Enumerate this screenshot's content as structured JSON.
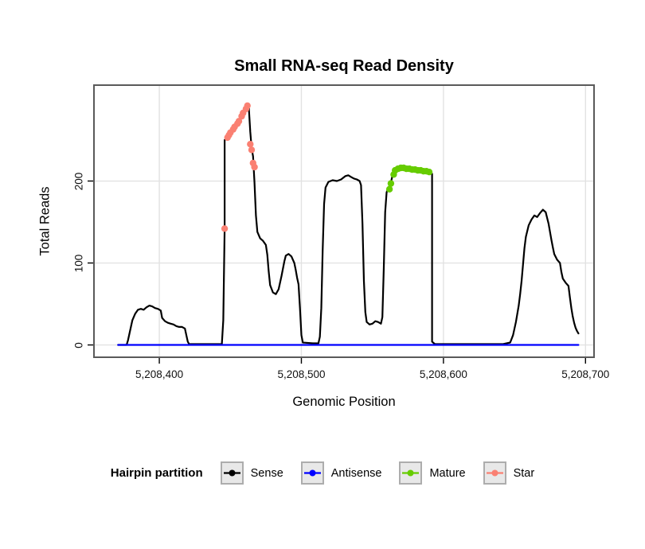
{
  "title": "Small RNA-seq Read Density",
  "x_axis": {
    "label": "Genomic Position",
    "ticks": [
      5208400,
      5208500,
      5208600,
      5208700
    ],
    "tick_labels": [
      "5,208,400",
      "5,208,500",
      "5,208,600",
      "5,208,700"
    ]
  },
  "y_axis": {
    "label": "Total Reads",
    "ticks": [
      0,
      100,
      200
    ],
    "tick_labels": [
      "0",
      "100",
      "200"
    ]
  },
  "legend": {
    "title": "Hairpin partition",
    "items": [
      {
        "label": "Sense",
        "color": "#000000"
      },
      {
        "label": "Antisense",
        "color": "#0000FF"
      },
      {
        "label": "Mature",
        "color": "#66CC00"
      },
      {
        "label": "Star",
        "color": "#FA8072"
      }
    ]
  },
  "colors": {
    "grid": "#E2E2E2",
    "panel_border": "#5A5A5A",
    "tick": "#000000"
  },
  "chart_data": {
    "type": "line",
    "title": "Small RNA-seq Read Density",
    "xlabel": "Genomic Position",
    "ylabel": "Total Reads",
    "xlim": [
      5208354,
      5208706
    ],
    "ylim": [
      -15,
      317
    ],
    "grid": true,
    "legend_position": "bottom",
    "series": [
      {
        "name": "Sense",
        "type": "line",
        "color": "#000000",
        "points": [
          [
            5208371,
            0
          ],
          [
            5208377,
            0
          ],
          [
            5208378,
            6
          ],
          [
            5208379,
            14
          ],
          [
            5208380,
            22
          ],
          [
            5208381,
            30
          ],
          [
            5208383,
            38
          ],
          [
            5208385,
            43
          ],
          [
            5208387,
            44
          ],
          [
            5208389,
            43
          ],
          [
            5208391,
            46
          ],
          [
            5208393,
            48
          ],
          [
            5208395,
            47
          ],
          [
            5208397,
            45
          ],
          [
            5208399,
            44
          ],
          [
            5208401,
            42
          ],
          [
            5208402,
            33
          ],
          [
            5208404,
            29
          ],
          [
            5208406,
            27
          ],
          [
            5208408,
            26
          ],
          [
            5208410,
            25
          ],
          [
            5208412,
            23
          ],
          [
            5208414,
            22
          ],
          [
            5208416,
            22
          ],
          [
            5208418,
            20
          ],
          [
            5208419,
            12
          ],
          [
            5208420,
            4
          ],
          [
            5208421,
            1
          ],
          [
            5208432,
            1
          ],
          [
            5208444,
            1
          ],
          [
            5208445,
            30
          ],
          [
            5208446,
            142
          ],
          [
            5208446,
            250
          ],
          [
            5208448,
            253
          ],
          [
            5208450,
            258
          ],
          [
            5208452,
            263
          ],
          [
            5208454,
            268
          ],
          [
            5208456,
            273
          ],
          [
            5208458,
            279
          ],
          [
            5208460,
            286
          ],
          [
            5208462,
            292
          ],
          [
            5208463,
            289
          ],
          [
            5208464,
            260
          ],
          [
            5208465,
            240
          ],
          [
            5208466,
            230
          ],
          [
            5208467,
            198
          ],
          [
            5208468,
            158
          ],
          [
            5208469,
            138
          ],
          [
            5208471,
            130
          ],
          [
            5208473,
            127
          ],
          [
            5208475,
            122
          ],
          [
            5208476,
            110
          ],
          [
            5208477,
            90
          ],
          [
            5208478,
            73
          ],
          [
            5208480,
            64
          ],
          [
            5208482,
            62
          ],
          [
            5208484,
            68
          ],
          [
            5208486,
            84
          ],
          [
            5208488,
            102
          ],
          [
            5208489,
            109
          ],
          [
            5208491,
            111
          ],
          [
            5208493,
            108
          ],
          [
            5208495,
            100
          ],
          [
            5208496,
            92
          ],
          [
            5208497,
            82
          ],
          [
            5208498,
            74
          ],
          [
            5208499,
            45
          ],
          [
            5208500,
            12
          ],
          [
            5208501,
            3
          ],
          [
            5208508,
            2
          ],
          [
            5208512,
            2
          ],
          [
            5208513,
            10
          ],
          [
            5208514,
            45
          ],
          [
            5208515,
            115
          ],
          [
            5208516,
            172
          ],
          [
            5208517,
            192
          ],
          [
            5208519,
            199
          ],
          [
            5208522,
            201
          ],
          [
            5208525,
            200
          ],
          [
            5208528,
            202
          ],
          [
            5208531,
            206
          ],
          [
            5208533,
            207
          ],
          [
            5208535,
            205
          ],
          [
            5208537,
            203
          ],
          [
            5208539,
            202
          ],
          [
            5208541,
            200
          ],
          [
            5208542,
            195
          ],
          [
            5208543,
            148
          ],
          [
            5208544,
            78
          ],
          [
            5208545,
            40
          ],
          [
            5208546,
            28
          ],
          [
            5208548,
            25
          ],
          [
            5208550,
            26
          ],
          [
            5208552,
            29
          ],
          [
            5208554,
            28
          ],
          [
            5208556,
            26
          ],
          [
            5208557,
            34
          ],
          [
            5208558,
            95
          ],
          [
            5208559,
            162
          ],
          [
            5208560,
            186
          ],
          [
            5208561,
            191
          ],
          [
            5208562,
            194
          ],
          [
            5208563,
            198
          ],
          [
            5208564,
            206
          ],
          [
            5208565,
            212
          ],
          [
            5208567,
            215
          ],
          [
            5208570,
            216
          ],
          [
            5208573,
            216
          ],
          [
            5208576,
            215
          ],
          [
            5208579,
            214
          ],
          [
            5208582,
            213
          ],
          [
            5208585,
            212
          ],
          [
            5208588,
            212
          ],
          [
            5208590,
            211
          ],
          [
            5208591,
            209
          ],
          [
            5208592,
            209
          ],
          [
            5208592,
            4
          ],
          [
            5208594,
            1
          ],
          [
            5208605,
            1
          ],
          [
            5208642,
            1
          ],
          [
            5208647,
            3
          ],
          [
            5208649,
            12
          ],
          [
            5208651,
            28
          ],
          [
            5208653,
            48
          ],
          [
            5208654,
            62
          ],
          [
            5208655,
            78
          ],
          [
            5208656,
            98
          ],
          [
            5208657,
            118
          ],
          [
            5208658,
            132
          ],
          [
            5208660,
            146
          ],
          [
            5208662,
            153
          ],
          [
            5208664,
            158
          ],
          [
            5208666,
            156
          ],
          [
            5208668,
            161
          ],
          [
            5208670,
            165
          ],
          [
            5208672,
            162
          ],
          [
            5208674,
            148
          ],
          [
            5208675,
            138
          ],
          [
            5208676,
            128
          ],
          [
            5208677,
            119
          ],
          [
            5208678,
            111
          ],
          [
            5208680,
            104
          ],
          [
            5208682,
            100
          ],
          [
            5208683,
            89
          ],
          [
            5208684,
            81
          ],
          [
            5208686,
            76
          ],
          [
            5208688,
            72
          ],
          [
            5208689,
            58
          ],
          [
            5208690,
            45
          ],
          [
            5208691,
            35
          ],
          [
            5208692,
            27
          ],
          [
            5208693,
            21
          ],
          [
            5208694,
            17
          ],
          [
            5208695,
            14
          ]
        ]
      },
      {
        "name": "Antisense",
        "type": "line",
        "color": "#0000FF",
        "points": [
          [
            5208371,
            0
          ],
          [
            5208695,
            0
          ]
        ]
      },
      {
        "name": "Mature",
        "type": "points",
        "color": "#66CC00",
        "points": [
          [
            5208562,
            190
          ],
          [
            5208563,
            197
          ],
          [
            5208565,
            208
          ],
          [
            5208566,
            213
          ],
          [
            5208568,
            215
          ],
          [
            5208570,
            216
          ],
          [
            5208572,
            216
          ],
          [
            5208574,
            215
          ],
          [
            5208576,
            215
          ],
          [
            5208578,
            214
          ],
          [
            5208580,
            214
          ],
          [
            5208582,
            213
          ],
          [
            5208584,
            213
          ],
          [
            5208586,
            212
          ],
          [
            5208588,
            212
          ],
          [
            5208590,
            211
          ]
        ]
      },
      {
        "name": "Star",
        "type": "points",
        "color": "#FA8072",
        "points": [
          [
            5208446,
            142
          ],
          [
            5208448,
            253
          ],
          [
            5208449,
            256
          ],
          [
            5208450,
            259
          ],
          [
            5208452,
            263
          ],
          [
            5208453,
            266
          ],
          [
            5208455,
            270
          ],
          [
            5208456,
            273
          ],
          [
            5208458,
            279
          ],
          [
            5208459,
            283
          ],
          [
            5208461,
            288
          ],
          [
            5208462,
            292
          ],
          [
            5208464,
            245
          ],
          [
            5208465,
            238
          ],
          [
            5208466,
            222
          ],
          [
            5208467,
            217
          ]
        ]
      }
    ]
  }
}
